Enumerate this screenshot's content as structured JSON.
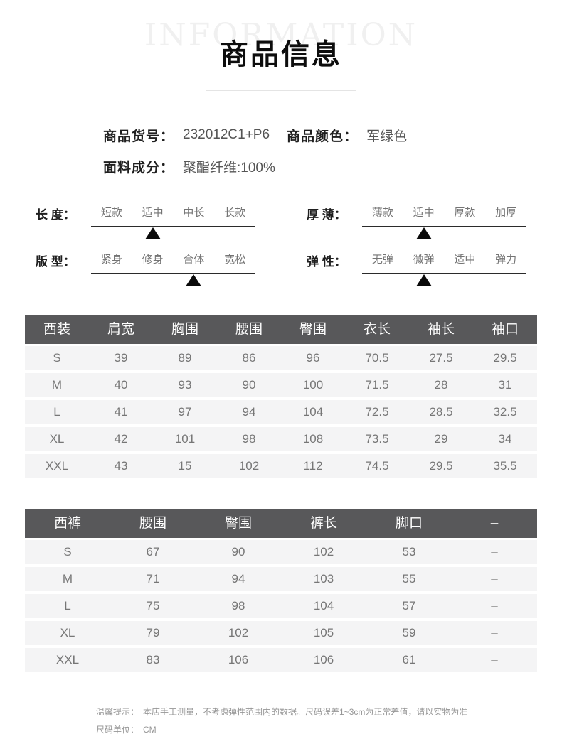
{
  "watermark": "INFORMATION",
  "title": "商品信息",
  "product_info": {
    "item_no_label": "商品货号：",
    "item_no_value": "232012C1+P6",
    "color_label": "商品颜色：",
    "color_value": "军绿色",
    "fabric_label": "面料成分：",
    "fabric_value": "聚酯纤维:100%"
  },
  "sliders": [
    {
      "name": "length",
      "label": "长 度：",
      "options": [
        "短款",
        "适中",
        "中长",
        "长款"
      ],
      "selected_index": 1,
      "selected": "适中"
    },
    {
      "name": "thickness",
      "label": "厚 薄：",
      "options": [
        "薄款",
        "适中",
        "厚款",
        "加厚"
      ],
      "selected_index": 1,
      "selected": "适中"
    },
    {
      "name": "fit",
      "label": "版 型：",
      "options": [
        "紧身",
        "修身",
        "合体",
        "宽松"
      ],
      "selected_index": 2,
      "selected": "合体"
    },
    {
      "name": "elasticity",
      "label": "弹 性：",
      "options": [
        "无弹",
        "微弹",
        "适中",
        "弹力"
      ],
      "selected_index": 1,
      "selected": "微弹"
    }
  ],
  "suit_table": {
    "headers": [
      "西装",
      "肩宽",
      "胸围",
      "腰围",
      "臀围",
      "衣长",
      "袖长",
      "袖口"
    ],
    "rows": [
      [
        "S",
        "39",
        "89",
        "86",
        "96",
        "70.5",
        "27.5",
        "29.5"
      ],
      [
        "M",
        "40",
        "93",
        "90",
        "100",
        "71.5",
        "28",
        "31"
      ],
      [
        "L",
        "41",
        "97",
        "94",
        "104",
        "72.5",
        "28.5",
        "32.5"
      ],
      [
        "XL",
        "42",
        "101",
        "98",
        "108",
        "73.5",
        "29",
        "34"
      ],
      [
        "XXL",
        "43",
        "15",
        "102",
        "112",
        "74.5",
        "29.5",
        "35.5"
      ]
    ]
  },
  "pants_table": {
    "headers": [
      "西裤",
      "腰围",
      "臀围",
      "裤长",
      "脚口",
      "–"
    ],
    "rows": [
      [
        "S",
        "67",
        "90",
        "102",
        "53",
        "–"
      ],
      [
        "M",
        "71",
        "94",
        "103",
        "55",
        "–"
      ],
      [
        "L",
        "75",
        "98",
        "104",
        "57",
        "–"
      ],
      [
        "XL",
        "79",
        "102",
        "105",
        "59",
        "–"
      ],
      [
        "XXL",
        "83",
        "106",
        "106",
        "61",
        "–"
      ]
    ]
  },
  "notes": {
    "tip_label": "温馨提示：",
    "tip_text": "本店手工测量，不考虑弹性范围内的数据。尺码误差1~3cm为正常差值，请以实物为准",
    "unit_label": "尺码单位：",
    "unit_text": "CM"
  },
  "colors": {
    "table_header_bg": "#58585a",
    "table_row_bg": "#f4f4f5",
    "text_dark": "#1f1f1f",
    "text_gray": "#767676",
    "watermark_gray": "#f0f0f0",
    "divider_gray": "#e4e4e4"
  }
}
